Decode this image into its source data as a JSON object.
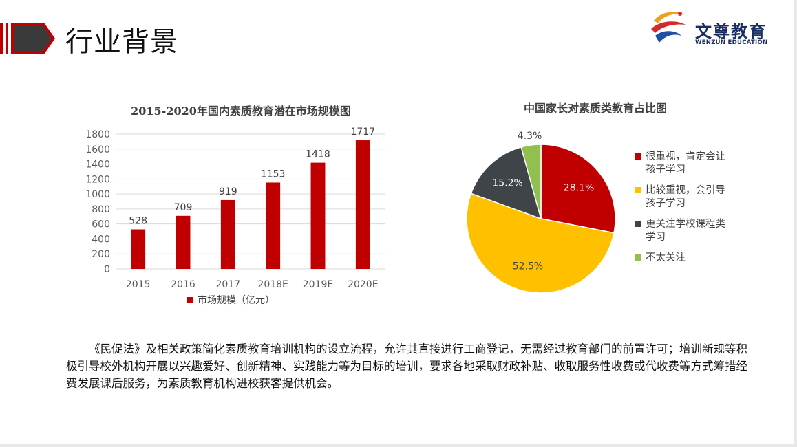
{
  "page": {
    "title": "行业背景"
  },
  "logo": {
    "name_cn": "文尊教育",
    "name_en": "WENZUN EDUCATION"
  },
  "chart_data": [
    {
      "type": "bar",
      "title": "2015-2020年国内素质教育潜在市场规模图",
      "categories": [
        "2015",
        "2016",
        "2017",
        "2018E",
        "2019E",
        "2020E"
      ],
      "series": [
        {
          "name": "市场规模（亿元）",
          "values": [
            528,
            709,
            919,
            1153,
            1418,
            1717
          ],
          "color": "#c00000"
        }
      ],
      "ylim": [
        0,
        1800
      ],
      "yticks": [
        0,
        200,
        400,
        600,
        800,
        1000,
        1200,
        1400,
        1600,
        1800
      ],
      "grid": true,
      "legend": "bottom"
    },
    {
      "type": "pie",
      "title": "中国家长对素质类教育占比图",
      "slices": [
        {
          "label": "很重视，肯定会让孩子学习",
          "lines": [
            "很重视，肯定会让",
            "孩子学习"
          ],
          "value": 28.1,
          "display": "28.1%",
          "color": "#c00000"
        },
        {
          "label": "比较重视，会引导孩子学习",
          "lines": [
            "比较重视，会引导",
            "孩子学习"
          ],
          "value": 52.5,
          "display": "52.5%",
          "color": "#ffc000"
        },
        {
          "label": "更关注学校课程类学习",
          "lines": [
            "更关注学校课程类",
            "学习"
          ],
          "value": 15.2,
          "display": "15.2%",
          "color": "#3f4449"
        },
        {
          "label": "不太关注",
          "lines": [
            "不太关注"
          ],
          "value": 4.3,
          "display": "4.3%",
          "color": "#92c050"
        }
      ],
      "legend": "right"
    }
  ],
  "body": {
    "paragraph": "《民促法》及相关政策简化素质教育培训机构的设立流程，允许其直接进行工商登记，无需经过教育部门的前置许可；培训新规等积极引导校外机构开展以兴趣爱好、创新精神、实践能力等为目标的培训，要求各地采取财政补贴、收取服务性收费或代收费等方式筹措经费发展课后服务，为素质教育机构进校获客提供机会。"
  }
}
